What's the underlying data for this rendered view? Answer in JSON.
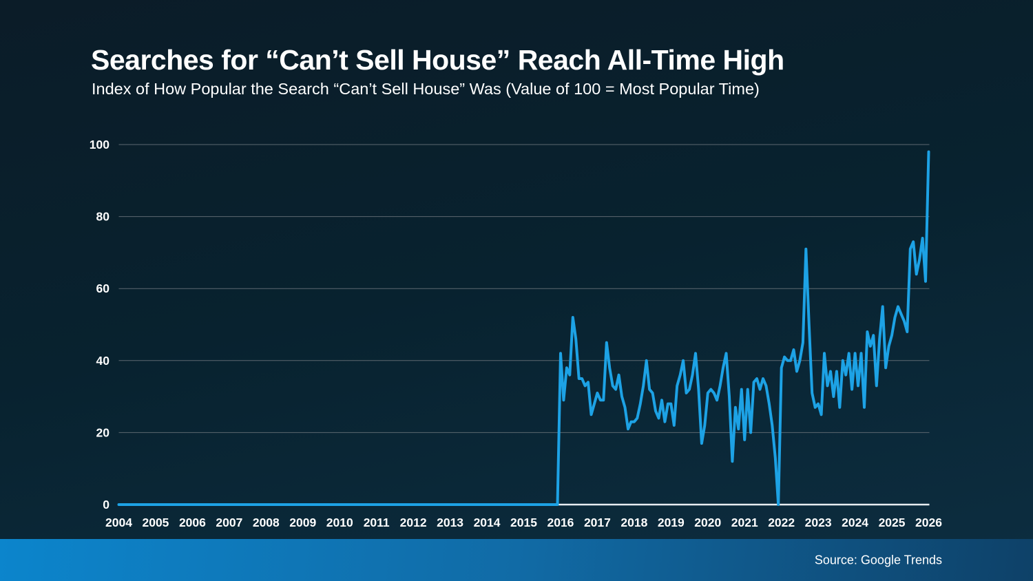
{
  "header": {
    "title": "Searches for “Can’t Sell House” Reach All-Time High",
    "subtitle": "Index of How Popular the Search “Can’t Sell House” Was (Value of 100 = Most Popular Time)"
  },
  "footer": {
    "source": "Source: Google Trends"
  },
  "colors": {
    "background_top": "#0b1c28",
    "background_mid": "#08222f",
    "background_bottom": "#0d2e41",
    "text": "#ffffff",
    "line": "#1da2e5",
    "gridline": "#5d6870",
    "baseline": "#e9eef2",
    "footer_left": "#0c85cc",
    "footer_right": "#0e4168"
  },
  "chart_data": {
    "type": "line",
    "title": "Searches for “Can’t Sell House” Reach All-Time High",
    "subtitle": "Index of How Popular the Search “Can’t Sell House” Was (Value of 100 = Most Popular Time)",
    "xlabel": "",
    "ylabel": "",
    "ylim": [
      0,
      100
    ],
    "y_ticks": [
      0,
      20,
      40,
      60,
      80,
      100
    ],
    "x_tick_labels": [
      "2004",
      "2005",
      "2006",
      "2007",
      "2008",
      "2009",
      "2010",
      "2011",
      "2012",
      "2013",
      "2014",
      "2015",
      "2016",
      "2017",
      "2018",
      "2019",
      "2020",
      "2021",
      "2022",
      "2023",
      "2024",
      "2025",
      "2026"
    ],
    "grid": "horizontal",
    "legend": "none",
    "series_name": "“Can’t Sell House” search popularity index",
    "cadence": "monthly",
    "values_by_year": {
      "2004": [
        0,
        0,
        0,
        0,
        0,
        0,
        0,
        0,
        0,
        0,
        0,
        0
      ],
      "2005": [
        0,
        0,
        0,
        0,
        0,
        0,
        0,
        0,
        0,
        0,
        0,
        0
      ],
      "2006": [
        0,
        0,
        0,
        0,
        0,
        0,
        0,
        0,
        0,
        0,
        0,
        0
      ],
      "2007": [
        0,
        0,
        0,
        0,
        0,
        0,
        0,
        0,
        0,
        0,
        0,
        0
      ],
      "2008": [
        0,
        0,
        0,
        0,
        0,
        0,
        0,
        0,
        0,
        0,
        0,
        0
      ],
      "2009": [
        0,
        0,
        0,
        0,
        0,
        0,
        0,
        0,
        0,
        0,
        0,
        0
      ],
      "2010": [
        0,
        0,
        0,
        0,
        0,
        0,
        0,
        0,
        0,
        0,
        0,
        0
      ],
      "2011": [
        0,
        0,
        0,
        0,
        0,
        0,
        0,
        0,
        0,
        0,
        0,
        0
      ],
      "2012": [
        0,
        0,
        0,
        0,
        0,
        0,
        0,
        0,
        0,
        0,
        0,
        0
      ],
      "2013": [
        0,
        0,
        0,
        0,
        0,
        0,
        0,
        0,
        0,
        0,
        0,
        0
      ],
      "2014": [
        0,
        0,
        0,
        0,
        0,
        0,
        0,
        0,
        0,
        0,
        0,
        0
      ],
      "2015": [
        0,
        0,
        0,
        0,
        0,
        0,
        0,
        0,
        0,
        0,
        0,
        0
      ],
      "2016": [
        42,
        29,
        38,
        36,
        52,
        46,
        35,
        35,
        33,
        34,
        25,
        28
      ],
      "2017": [
        31,
        29,
        29,
        45,
        38,
        33,
        32,
        36,
        30,
        27,
        21,
        23
      ],
      "2018": [
        23,
        24,
        28,
        33,
        40,
        32,
        31,
        26,
        24,
        29,
        23,
        28
      ],
      "2019": [
        28,
        22,
        33,
        36,
        40,
        31,
        32,
        36,
        42,
        32,
        17,
        22
      ],
      "2020": [
        31,
        32,
        31,
        29,
        33,
        38,
        42,
        30,
        12,
        27,
        21,
        32
      ],
      "2021": [
        18,
        32,
        20,
        34,
        35,
        32,
        35,
        33,
        28,
        22,
        13,
        0
      ],
      "2022": [
        38,
        41,
        40,
        40,
        43,
        37,
        40,
        45,
        71,
        50,
        31,
        27
      ],
      "2023": [
        28,
        25,
        42,
        33,
        37,
        30,
        37,
        27,
        40,
        36,
        42,
        32
      ],
      "2024": [
        42,
        33,
        42,
        27,
        48,
        44,
        47,
        33,
        46,
        55,
        38,
        44
      ],
      "2025": [
        47,
        52,
        55,
        53,
        51,
        48,
        71,
        73,
        64,
        68,
        74,
        62
      ],
      "2026": [
        98
      ]
    }
  }
}
